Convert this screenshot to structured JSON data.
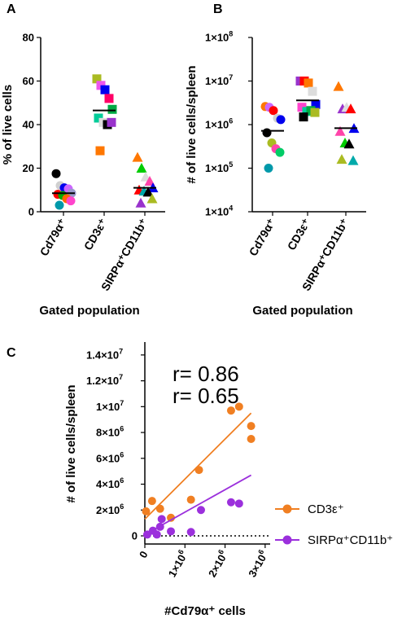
{
  "figure": {
    "panels": [
      {
        "letter": "A",
        "chart_index": 0
      },
      {
        "letter": "B",
        "chart_index": 1
      },
      {
        "letter": "C",
        "chart_index": 2
      }
    ]
  },
  "chart_data": [
    {
      "type": "scatter",
      "panel": "A",
      "ylabel": "% of live cells",
      "xlabel": "Gated population",
      "ylim": [
        0,
        80
      ],
      "yticks": [
        "0",
        "20",
        "40",
        "60",
        "80"
      ],
      "categories": [
        "Cd79α⁺",
        "CD3ε⁺",
        "SIRPα⁺CD11b⁺"
      ],
      "marker": [
        "circle",
        "square",
        "triangle"
      ],
      "mean_line": true,
      "means": [
        8.5,
        46.5,
        11
      ],
      "points": [
        [
          {
            "y": 17.5,
            "color": "#000000"
          },
          {
            "y": 12,
            "color": "#d0d0d0"
          },
          {
            "y": 11,
            "color": "#0000ee"
          },
          {
            "y": 10.5,
            "color": "#cc66ff"
          },
          {
            "y": 8.5,
            "color": "#9999cc"
          },
          {
            "y": 8,
            "color": "#ff0000"
          },
          {
            "y": 7.5,
            "color": "#00aa00"
          },
          {
            "y": 6,
            "color": "#ff6600"
          },
          {
            "y": 5,
            "color": "#ff44cc"
          },
          {
            "y": 3,
            "color": "#0099aa"
          }
        ],
        [
          {
            "y": 61,
            "color": "#aabb22"
          },
          {
            "y": 58,
            "color": "#ee55ee"
          },
          {
            "y": 56,
            "color": "#0000ee"
          },
          {
            "y": 52,
            "color": "#ff0066"
          },
          {
            "y": 47,
            "color": "#00aa44"
          },
          {
            "y": 43,
            "color": "#00cc99"
          },
          {
            "y": 41,
            "color": "#dddddd"
          },
          {
            "y": 40,
            "color": "#000000"
          },
          {
            "y": 41,
            "color": "#9933cc"
          },
          {
            "y": 28,
            "color": "#ff7700"
          }
        ],
        [
          {
            "y": 25,
            "color": "#ff7700"
          },
          {
            "y": 20,
            "color": "#00cc00"
          },
          {
            "y": 16,
            "color": "#dddddd"
          },
          {
            "y": 14,
            "color": "#ff44aa"
          },
          {
            "y": 11,
            "color": "#0000ee"
          },
          {
            "y": 10,
            "color": "#ff0000"
          },
          {
            "y": 9.5,
            "color": "#00aaaa"
          },
          {
            "y": 9,
            "color": "#000000"
          },
          {
            "y": 6,
            "color": "#aabb22"
          },
          {
            "y": 4,
            "color": "#9933cc"
          }
        ]
      ]
    },
    {
      "type": "scatter",
      "panel": "B",
      "ylabel": "# of live cells/spleen",
      "xlabel": "Gated population",
      "yscale": "log",
      "ylim": [
        10000,
        100000000
      ],
      "yticks": [
        {
          "base": "1×10",
          "exp": "4"
        },
        {
          "base": "1×10",
          "exp": "5"
        },
        {
          "base": "1×10",
          "exp": "6"
        },
        {
          "base": "1×10",
          "exp": "7"
        },
        {
          "base": "1×10",
          "exp": "8"
        }
      ],
      "categories": [
        "Cd79α⁺",
        "CD3ε⁺",
        "SIRPα⁺CD11b⁺"
      ],
      "marker": [
        "circle",
        "square",
        "triangle"
      ],
      "mean_line": true,
      "means": [
        720000,
        3600000,
        830000
      ],
      "points": [
        [
          {
            "y": 2600000,
            "color": "#ff7700"
          },
          {
            "y": 2500000,
            "color": "#cc66ff"
          },
          {
            "y": 2100000,
            "color": "#ff0000"
          },
          {
            "y": 1400000,
            "color": "#d0d0d0"
          },
          {
            "y": 1300000,
            "color": "#0000ee"
          },
          {
            "y": 650000,
            "color": "#000000"
          },
          {
            "y": 380000,
            "color": "#aabb22"
          },
          {
            "y": 280000,
            "color": "#ff44aa"
          },
          {
            "y": 230000,
            "color": "#00cc66"
          },
          {
            "y": 100000,
            "color": "#0099aa"
          }
        ],
        [
          {
            "y": 10000000,
            "color": "#9933cc"
          },
          {
            "y": 10000000,
            "color": "#ff0000"
          },
          {
            "y": 9000000,
            "color": "#ff7700"
          },
          {
            "y": 5800000,
            "color": "#dddddd"
          },
          {
            "y": 2900000,
            "color": "#0000ee"
          },
          {
            "y": 2500000,
            "color": "#ff44cc"
          },
          {
            "y": 2000000,
            "color": "#00cc99"
          },
          {
            "y": 2100000,
            "color": "#00aa44"
          },
          {
            "y": 1900000,
            "color": "#aabb22"
          },
          {
            "y": 1500000,
            "color": "#000000"
          }
        ],
        [
          {
            "y": 7500000,
            "color": "#ff7700"
          },
          {
            "y": 2300000,
            "color": "#9933cc"
          },
          {
            "y": 2500000,
            "color": "#dddddd"
          },
          {
            "y": 2300000,
            "color": "#ff0000"
          },
          {
            "y": 820000,
            "color": "#0000ee"
          },
          {
            "y": 700000,
            "color": "#ff44aa"
          },
          {
            "y": 380000,
            "color": "#00cc00"
          },
          {
            "y": 360000,
            "color": "#000000"
          },
          {
            "y": 150000,
            "color": "#00aaaa"
          },
          {
            "y": 160000,
            "color": "#aabb22"
          }
        ]
      ]
    },
    {
      "type": "scatter",
      "panel": "C",
      "xlabel": "#Cd79α⁺ cells",
      "ylabel": "# of live cells/spleen",
      "xlim": [
        0,
        3000000
      ],
      "ylim": [
        0,
        15000000
      ],
      "xticks": [
        {
          "value": 0,
          "base": "0",
          "exp": ""
        },
        {
          "value": 1000000,
          "base": "1×10",
          "exp": "6"
        },
        {
          "value": 2000000,
          "base": "2×10",
          "exp": "6"
        },
        {
          "value": 3000000,
          "base": "3×10",
          "exp": "6"
        }
      ],
      "yticks": [
        {
          "value": 0,
          "base": "0",
          "exp": ""
        },
        {
          "value": 2000000,
          "base": "2×10",
          "exp": "6"
        },
        {
          "value": 4000000,
          "base": "4×10",
          "exp": "6"
        },
        {
          "value": 6000000,
          "base": "6×10",
          "exp": "6"
        },
        {
          "value": 8000000,
          "base": "8×10",
          "exp": "6"
        },
        {
          "value": 10000000,
          "base": "1×10",
          "exp": "7"
        },
        {
          "value": 12000000,
          "base": "1.2×10",
          "exp": "7"
        },
        {
          "value": 14000000,
          "base": "1.4×10",
          "exp": "7"
        }
      ],
      "zero_line": "dotted",
      "annotations": [
        {
          "text": "r= 0.86",
          "series": 0
        },
        {
          "text": "r= 0.65",
          "series": 1
        }
      ],
      "series": [
        {
          "name": "CD3ε⁺",
          "color": "#f07f22",
          "points": [
            [
              30000,
              1900000
            ],
            [
              180000,
              2700000
            ],
            [
              380000,
              2100000
            ],
            [
              650000,
              1400000
            ],
            [
              1150000,
              2800000
            ],
            [
              1350000,
              5100000
            ],
            [
              2150000,
              9700000
            ],
            [
              2350000,
              10000000
            ],
            [
              2650000,
              8500000
            ],
            [
              2650000,
              7500000
            ]
          ],
          "fit": [
            [
              0,
              1300000
            ],
            [
              2650000,
              9500000
            ]
          ]
        },
        {
          "name": "SIRPα⁺CD11b⁺",
          "color": "#9b30dc",
          "points": [
            [
              60000,
              100000
            ],
            [
              200000,
              400000
            ],
            [
              300000,
              100000
            ],
            [
              380000,
              700000
            ],
            [
              420000,
              1300000
            ],
            [
              650000,
              350000
            ],
            [
              1150000,
              300000
            ],
            [
              1400000,
              2000000
            ],
            [
              2150000,
              2600000
            ],
            [
              2350000,
              2500000
            ]
          ],
          "fit": [
            [
              0,
              100000
            ],
            [
              2650000,
              4700000
            ]
          ]
        }
      ]
    }
  ]
}
